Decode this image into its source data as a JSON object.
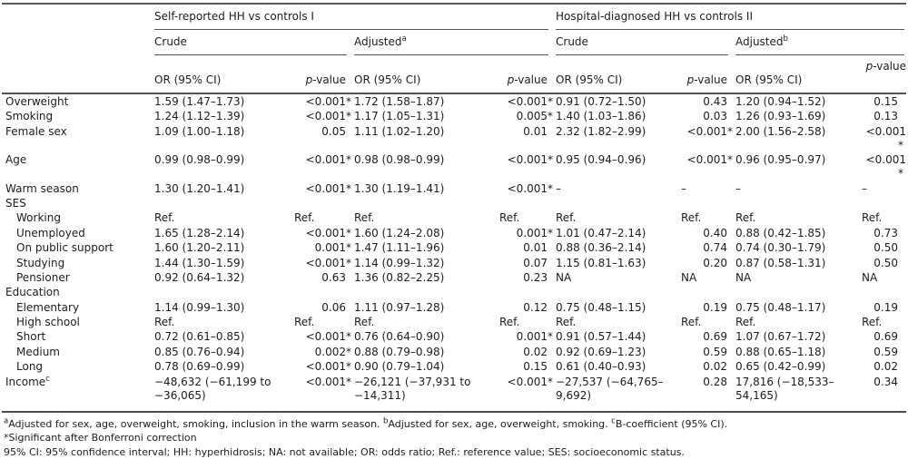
{
  "table": {
    "group_headers": [
      "Self-reported HH vs controls I",
      "Hospital-diagnosed HH vs controls II"
    ],
    "subgroup_headers": [
      {
        "label": "Crude",
        "sup": ""
      },
      {
        "label": "Adjusted",
        "sup": "a"
      },
      {
        "label": "Crude",
        "sup": ""
      },
      {
        "label": "Adjusted",
        "sup": "b"
      }
    ],
    "column_headers": {
      "or_label": "OR (95% CI)",
      "p_italic": "p",
      "p_rest": "-value"
    },
    "rows": [
      {
        "label": "Overweight",
        "indent": 0,
        "cells": [
          "1.59 (1.47–1.73)",
          "<0.001*",
          "1.72 (1.58–1.87)",
          "<0.001*",
          "0.91 (0.72–1.50)",
          "0.43",
          "1.20 (0.94–1.52)",
          "0.15"
        ]
      },
      {
        "label": "Smoking",
        "indent": 0,
        "cells": [
          "1.24 (1.12–1.39)",
          "<0.001*",
          "1.17 (1.05–1.31)",
          "0.005*",
          "1.40 (1.03–1.86)",
          "0.03",
          "1.26 (0.93–1.69)",
          "0.13"
        ]
      },
      {
        "label": "Female sex",
        "indent": 0,
        "cells": [
          "1.09 (1.00–1.18)",
          "0.05",
          "1.11 (1.02–1.20)",
          "0.01",
          "2.32 (1.82–2.99)",
          "<0.001*",
          "2.00 (1.56–2.58)",
          "<0.001*"
        ]
      },
      {
        "label": "Age",
        "indent": 0,
        "cells": [
          "0.99 (0.98–0.99)",
          "<0.001*",
          "0.98 (0.98–0.99)",
          "<0.001*",
          "0.95 (0.94–0.96)",
          "<0.001*",
          "0.96 (0.95–0.97)",
          "<0.001*"
        ]
      },
      {
        "label": "Warm season",
        "indent": 0,
        "cells": [
          "1.30 (1.20–1.41)",
          "<0.001*",
          "1.30 (1.19–1.41)",
          "<0.001*",
          "–",
          "–",
          "–",
          "–"
        ]
      },
      {
        "label": "SES",
        "indent": 0,
        "section": true
      },
      {
        "label": "Working",
        "indent": 1,
        "cells": [
          "Ref.",
          "Ref.",
          "Ref.",
          "Ref.",
          "Ref.",
          "Ref.",
          "Ref.",
          "Ref."
        ]
      },
      {
        "label": "Unemployed",
        "indent": 1,
        "cells": [
          "1.65 (1.28–2.14)",
          "<0.001*",
          "1.60 (1.24–2.08)",
          "0.001*",
          "1.01 (0.47–2.14)",
          "0.40",
          "0.88 (0.42–1.85)",
          "0.73"
        ]
      },
      {
        "label": "On public support",
        "indent": 1,
        "cells": [
          "1.60 (1.20–2.11)",
          "0.001*",
          "1.47 (1.11–1.96)",
          "0.01",
          "0.88 (0.36–2.14)",
          "0.74",
          "0.74 (0.30–1.79)",
          "0.50"
        ]
      },
      {
        "label": "Studying",
        "indent": 1,
        "cells": [
          "1.44 (1.30–1.59)",
          "<0.001*",
          "1.14 (0.99–1.32)",
          "0.07",
          "1.15 (0.81–1.63)",
          "0.20",
          "0.87 (0.58–1.31)",
          "0.50"
        ]
      },
      {
        "label": "Pensioner",
        "indent": 1,
        "cells": [
          "0.92 (0.64–1.32)",
          "0.63",
          "1.36 (0.82–2.25)",
          "0.23",
          "NA",
          "NA",
          "NA",
          "NA"
        ]
      },
      {
        "label": "Education",
        "indent": 0,
        "section": true
      },
      {
        "label": "Elementary",
        "indent": 1,
        "cells": [
          "1.14 (0.99–1.30)",
          "0.06",
          "1.11 (0.97–1.28)",
          "0.12",
          "0.75 (0.48–1.15)",
          "0.19",
          "0.75 (0.48–1.17)",
          "0.19"
        ]
      },
      {
        "label": "High school",
        "indent": 1,
        "cells": [
          "Ref.",
          "Ref.",
          "Ref.",
          "Ref.",
          "Ref.",
          "Ref.",
          "Ref.",
          "Ref."
        ]
      },
      {
        "label": "Short",
        "indent": 1,
        "cells": [
          "0.72 (0.61–0.85)",
          "<0.001*",
          "0.76 (0.64–0.90)",
          "0.001*",
          "0.91 (0.57–1.44)",
          "0.69",
          "1.07 (0.67–1.72)",
          "0.69"
        ]
      },
      {
        "label": "Medium",
        "indent": 1,
        "cells": [
          "0.85 (0.76–0.94)",
          "0.002*",
          "0.88 (0.79–0.98)",
          "0.02",
          "0.92 (0.69–1.23)",
          "0.59",
          "0.88 (0.65–1.18)",
          "0.59"
        ]
      },
      {
        "label": "Long",
        "indent": 1,
        "cells": [
          "0.78 (0.69–0.99)",
          "<0.001*",
          "0.90 (0.79–1.04)",
          "0.15",
          "0.61 (0.40–0.93)",
          "0.02",
          "0.65 (0.42–0.99)",
          "0.02"
        ]
      },
      {
        "label": "Income",
        "sup": "c",
        "indent": 0,
        "cells": [
          "−48,632 (−61,199 to\n−36,065)",
          "<0.001*",
          "−26,121 (−37,931 to\n−14,311)",
          "<0.001*",
          "−27,537 (−64,765–\n9,692)",
          "0.28",
          "17,816 (−18,533–\n54,165)",
          "0.34"
        ]
      }
    ]
  },
  "footnotes": {
    "adjustments": [
      {
        "sup": "a",
        "text": "Adjusted for sex, age, overweight, smoking, inclusion in the warm season. "
      },
      {
        "sup": "b",
        "text": "Adjusted for sex, age, overweight, smoking. "
      },
      {
        "sup": "c",
        "text": "B-coefficient (95% CI)."
      }
    ],
    "significance": "*Significant after Bonferroni correction",
    "abbreviations": "95% CI: 95% confidence interval; HH: hyperhidrosis; NA: not available; OR: odds ratio; Ref.: reference value; SES: socioeconomic status."
  }
}
